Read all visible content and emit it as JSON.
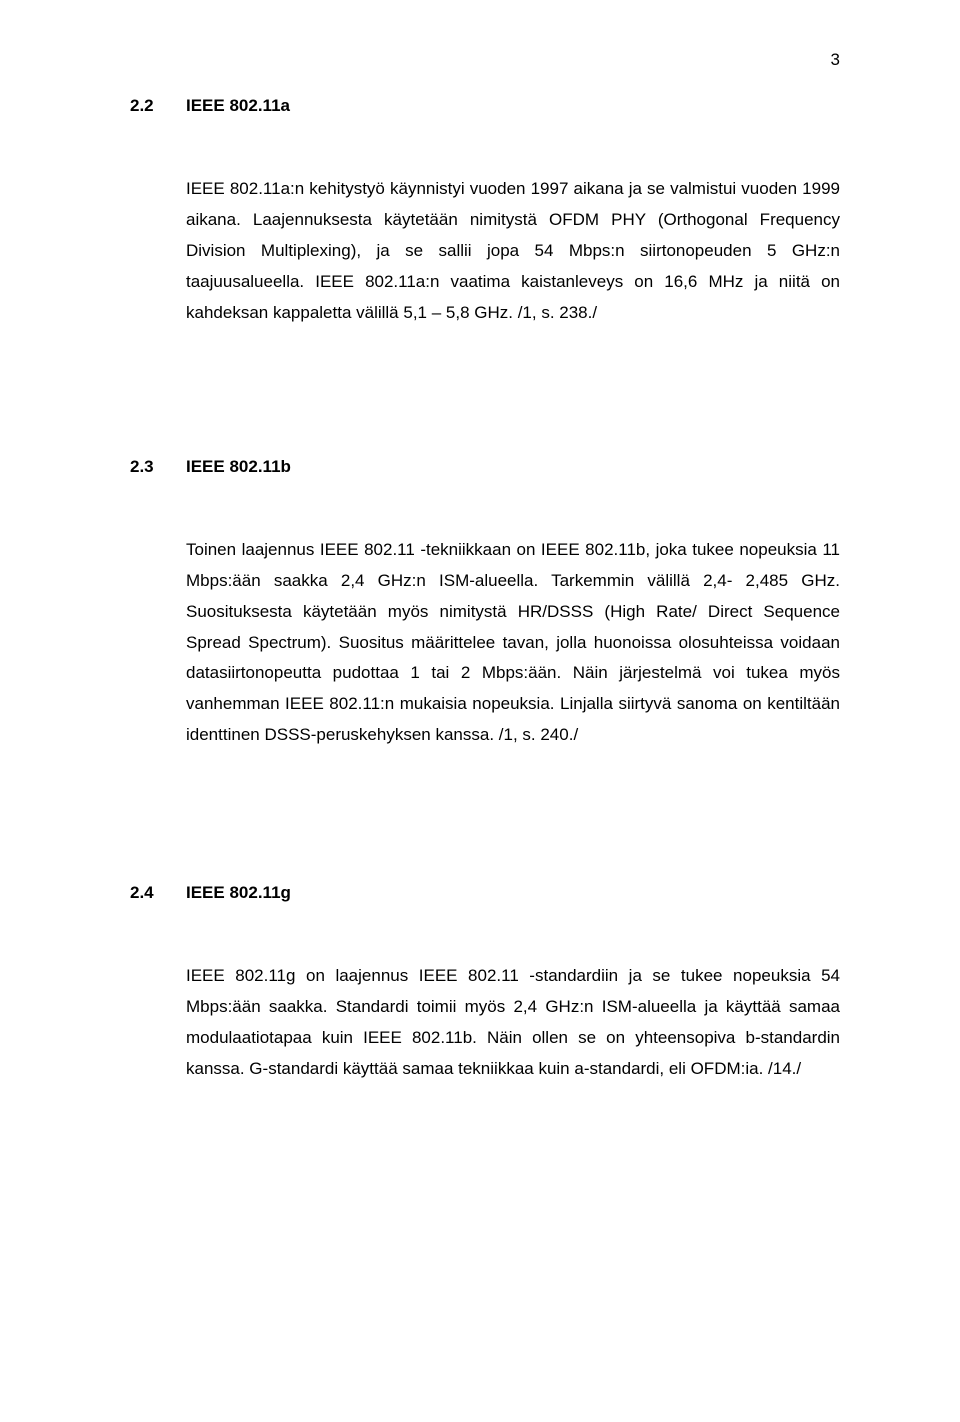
{
  "pageNumber": "3",
  "sections": [
    {
      "number": "2.2",
      "title": "IEEE 802.11a",
      "paragraph": "IEEE 802.11a:n kehitystyö käynnistyi vuoden 1997 aikana ja se valmistui vuoden 1999 aikana. Laajennuksesta käytetään nimitystä OFDM PHY (Orthogonal Frequency Division Multiplexing), ja se sallii jopa 54 Mbps:n siirtonopeuden 5 GHz:n taajuusalueella. IEEE 802.11a:n vaatima kaistanleveys on 16,6 MHz ja niitä on kahdeksan kappaletta välillä 5,1 – 5,8 GHz. /1, s. 238./"
    },
    {
      "number": "2.3",
      "title": "IEEE 802.11b",
      "paragraph": "Toinen laajennus IEEE 802.11 -tekniikkaan on IEEE 802.11b, joka tukee nopeuksia 11 Mbps:ään saakka 2,4 GHz:n ISM-alueella. Tarkemmin välillä 2,4- 2,485 GHz. Suosituksesta käytetään myös nimitystä HR/DSSS (High Rate/ Direct Sequence Spread Spectrum). Suositus määrittelee tavan, jolla huonoissa olosuhteissa voidaan datasiirtonopeutta pudottaa 1 tai 2 Mbps:ään. Näin järjestelmä voi tukea myös vanhemman IEEE 802.11:n mukaisia nopeuksia. Linjalla siirtyvä sanoma on kentiltään identtinen DSSS-peruskehyksen kanssa. /1, s. 240./"
    },
    {
      "number": "2.4",
      "title": "IEEE 802.11g",
      "paragraph": "IEEE 802.11g on laajennus IEEE 802.11 -standardiin ja se tukee nopeuksia 54 Mbps:ään saakka. Standardi toimii myös 2,4 GHz:n ISM-alueella ja käyttää samaa modulaatiotapaa kuin IEEE 802.11b. Näin ollen se on yhteensopiva b-standardin kanssa. G-standardi käyttää samaa tekniikkaa kuin a-standardi, eli OFDM:ia. /14./"
    }
  ]
}
